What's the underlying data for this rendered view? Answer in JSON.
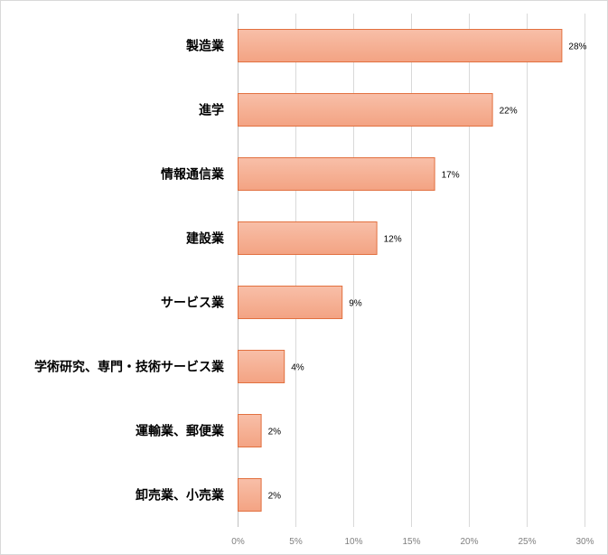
{
  "chart_data": {
    "type": "bar",
    "orientation": "horizontal",
    "categories": [
      "製造業",
      "進学",
      "情報通信業",
      "建設業",
      "サービス業",
      "学術研究、専門・技術サービス業",
      "運輸業、郵便業",
      "卸売業、小売業"
    ],
    "values": [
      28,
      22,
      17,
      12,
      9,
      4,
      2,
      2
    ],
    "data_labels": [
      "28%",
      "22%",
      "17%",
      "12%",
      "9%",
      "4%",
      "2%",
      "2%"
    ],
    "x_ticks": [
      0,
      5,
      10,
      15,
      20,
      25,
      30
    ],
    "x_tick_labels": [
      "0%",
      "5%",
      "10%",
      "15%",
      "20%",
      "25%",
      "30%"
    ],
    "xlim": [
      0,
      30
    ],
    "title": "",
    "xlabel": "",
    "ylabel": "",
    "grid": true,
    "legend": false,
    "colors": {
      "bar_fill_top": "#f8bfa8",
      "bar_fill_bottom": "#f3a383",
      "bar_stroke": "#e2703f",
      "grid": "#d9d9d9",
      "axis": "#bfbfbf",
      "tick_text": "#7f7f7f"
    }
  }
}
